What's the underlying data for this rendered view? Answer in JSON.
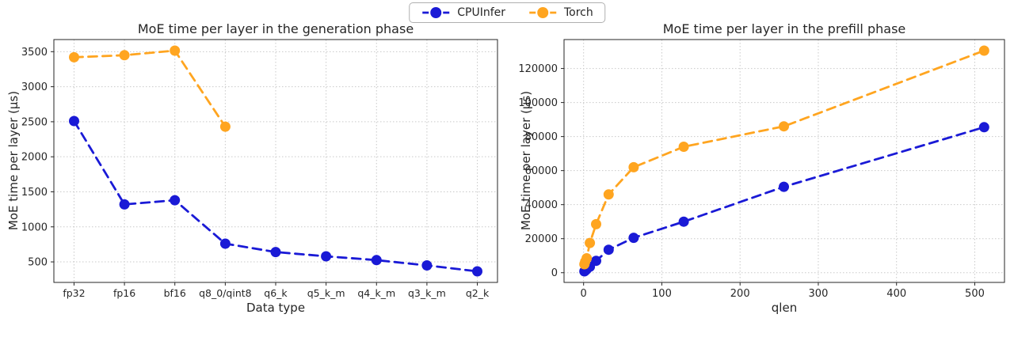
{
  "legend": {
    "items": [
      {
        "label": "CPUInfer",
        "color": "#1a1ad6"
      },
      {
        "label": "Torch",
        "color": "#ffa520"
      }
    ],
    "position": "upper center outside"
  },
  "chart_data": [
    {
      "type": "line",
      "title": "MoE time per layer in the generation phase",
      "xlabel": "Data type",
      "ylabel": "MoE time per layer (µs)",
      "categories": [
        "fp32",
        "fp16",
        "bf16",
        "q8_0/qint8",
        "q6_k",
        "q5_k_m",
        "q4_k_m",
        "q3_k_m",
        "q2_k"
      ],
      "yticks": [
        500,
        1000,
        1500,
        2000,
        2500,
        3000,
        3500
      ],
      "ylim": [
        207,
        3673
      ],
      "grid": true,
      "line_style": "dashed",
      "marker": "circle",
      "series": [
        {
          "name": "CPUInfer",
          "color": "#1a1ad6",
          "values": [
            2510,
            1320,
            1380,
            760,
            640,
            580,
            525,
            450,
            365
          ]
        },
        {
          "name": "Torch",
          "color": "#ffa520",
          "values": [
            3420,
            3450,
            3515,
            2430,
            null,
            null,
            null,
            null,
            null
          ]
        }
      ]
    },
    {
      "type": "line",
      "title": "MoE time per layer in the prefill phase",
      "xlabel": "qlen",
      "ylabel": "MoE time per layer (µs)",
      "x": [
        1,
        2,
        4,
        8,
        16,
        32,
        64,
        128,
        256,
        512
      ],
      "xticks": [
        0,
        100,
        200,
        300,
        400,
        500
      ],
      "xlim": [
        -25,
        538
      ],
      "yticks": [
        0,
        20000,
        40000,
        60000,
        80000,
        100000,
        120000
      ],
      "ylim": [
        -5700,
        137000
      ],
      "grid": true,
      "line_style": "dashed",
      "marker": "circle",
      "series": [
        {
          "name": "CPUInfer",
          "color": "#1a1ad6",
          "values": [
            800,
            1200,
            2000,
            3500,
            7000,
            13500,
            20500,
            30000,
            50500,
            85500
          ]
        },
        {
          "name": "Torch",
          "color": "#ffa520",
          "values": [
            5000,
            6500,
            8500,
            17500,
            28500,
            46000,
            62000,
            74000,
            86000,
            130500
          ]
        }
      ]
    }
  ]
}
